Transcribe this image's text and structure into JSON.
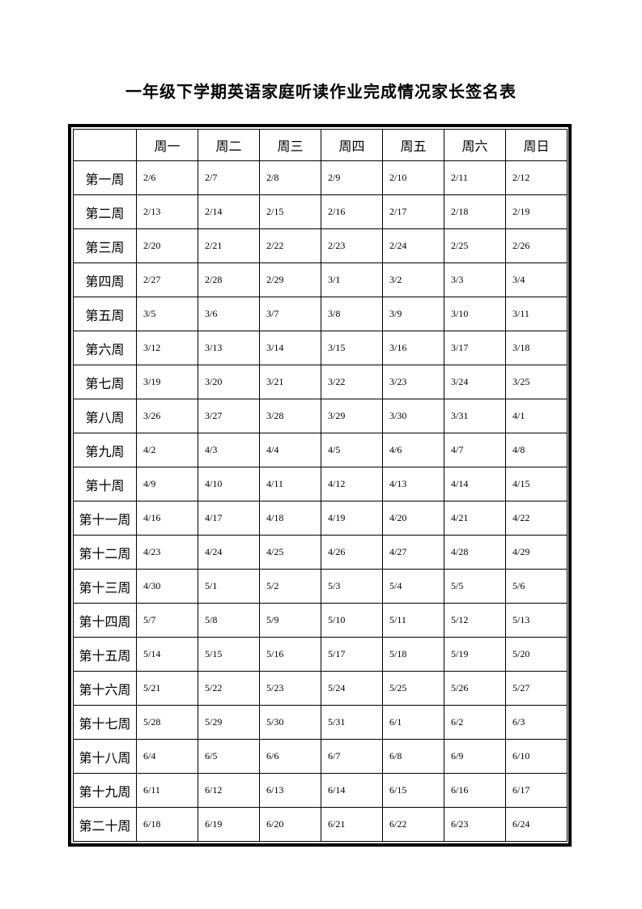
{
  "page": {
    "title": "一年级下学期英语家庭听读作业完成情况家长签名表"
  },
  "table": {
    "corner_label": "",
    "day_headers": [
      "周一",
      "周二",
      "周三",
      "周四",
      "周五",
      "周六",
      "周日"
    ],
    "rows": [
      {
        "label": "第一周",
        "dates": [
          "2/6",
          "2/7",
          "2/8",
          "2/9",
          "2/10",
          "2/11",
          "2/12"
        ]
      },
      {
        "label": "第二周",
        "dates": [
          "2/13",
          "2/14",
          "2/15",
          "2/16",
          "2/17",
          "2/18",
          "2/19"
        ]
      },
      {
        "label": "第三周",
        "dates": [
          "2/20",
          "2/21",
          "2/22",
          "2/23",
          "2/24",
          "2/25",
          "2/26"
        ]
      },
      {
        "label": "第四周",
        "dates": [
          "2/27",
          "2/28",
          "2/29",
          "3/1",
          "3/2",
          "3/3",
          "3/4"
        ]
      },
      {
        "label": "第五周",
        "dates": [
          "3/5",
          "3/6",
          "3/7",
          "3/8",
          "3/9",
          "3/10",
          "3/11"
        ]
      },
      {
        "label": "第六周",
        "dates": [
          "3/12",
          "3/13",
          "3/14",
          "3/15",
          "3/16",
          "3/17",
          "3/18"
        ]
      },
      {
        "label": "第七周",
        "dates": [
          "3/19",
          "3/20",
          "3/21",
          "3/22",
          "3/23",
          "3/24",
          "3/25"
        ]
      },
      {
        "label": "第八周",
        "dates": [
          "3/26",
          "3/27",
          "3/28",
          "3/29",
          "3/30",
          "3/31",
          "4/1"
        ]
      },
      {
        "label": "第九周",
        "dates": [
          "4/2",
          "4/3",
          "4/4",
          "4/5",
          "4/6",
          "4/7",
          "4/8"
        ]
      },
      {
        "label": "第十周",
        "dates": [
          "4/9",
          "4/10",
          "4/11",
          "4/12",
          "4/13",
          "4/14",
          "4/15"
        ]
      },
      {
        "label": "第十一周",
        "dates": [
          "4/16",
          "4/17",
          "4/18",
          "4/19",
          "4/20",
          "4/21",
          "4/22"
        ]
      },
      {
        "label": "第十二周",
        "dates": [
          "4/23",
          "4/24",
          "4/25",
          "4/26",
          "4/27",
          "4/28",
          "4/29"
        ]
      },
      {
        "label": "第十三周",
        "dates": [
          "4/30",
          "5/1",
          "5/2",
          "5/3",
          "5/4",
          "5/5",
          "5/6"
        ]
      },
      {
        "label": "第十四周",
        "dates": [
          "5/7",
          "5/8",
          "5/9",
          "5/10",
          "5/11",
          "5/12",
          "5/13"
        ]
      },
      {
        "label": "第十五周",
        "dates": [
          "5/14",
          "5/15",
          "5/16",
          "5/17",
          "5/18",
          "5/19",
          "5/20"
        ]
      },
      {
        "label": "第十六周",
        "dates": [
          "5/21",
          "5/22",
          "5/23",
          "5/24",
          "5/25",
          "5/26",
          "5/27"
        ]
      },
      {
        "label": "第十七周",
        "dates": [
          "5/28",
          "5/29",
          "5/30",
          "5/31",
          "6/1",
          "6/2",
          "6/3"
        ]
      },
      {
        "label": "第十八周",
        "dates": [
          "6/4",
          "6/5",
          "6/6",
          "6/7",
          "6/8",
          "6/9",
          "6/10"
        ]
      },
      {
        "label": "第十九周",
        "dates": [
          "6/11",
          "6/12",
          "6/13",
          "6/14",
          "6/15",
          "6/16",
          "6/17"
        ]
      },
      {
        "label": "第二十周",
        "dates": [
          "6/18",
          "6/19",
          "6/20",
          "6/21",
          "6/22",
          "6/23",
          "6/24"
        ]
      }
    ]
  }
}
